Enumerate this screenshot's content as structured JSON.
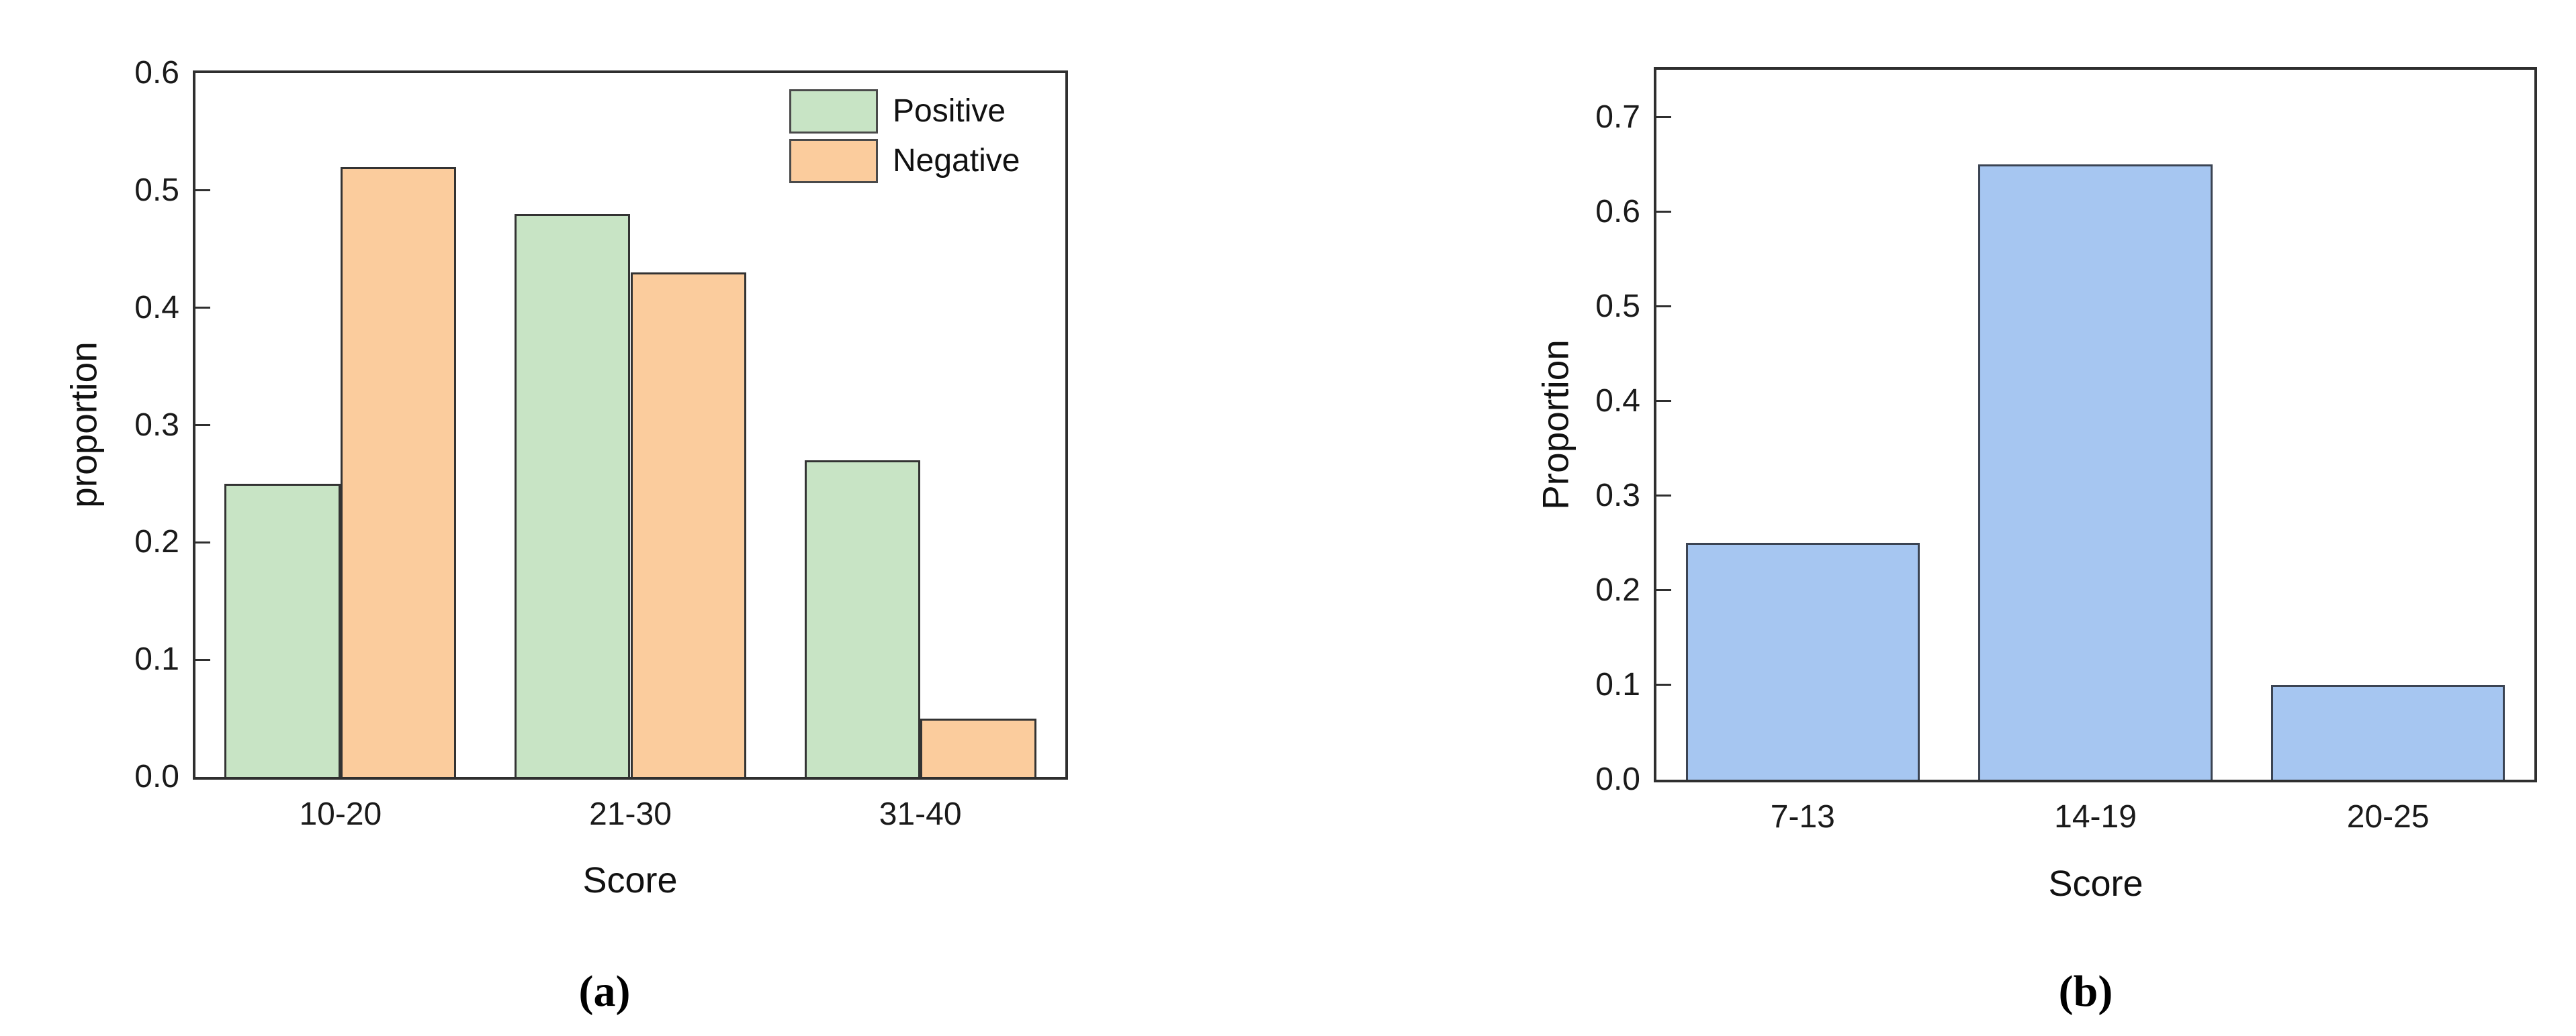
{
  "figure": {
    "background": "#ffffff",
    "spine_color": "#2f2f2f"
  },
  "chart_data": [
    {
      "id": "a",
      "type": "bar",
      "title": "",
      "xlabel": "Score",
      "ylabel": "proportion",
      "caption": "(a)",
      "categories": [
        "10-20",
        "21-30",
        "31-40"
      ],
      "series": [
        {
          "name": "Positive",
          "values": [
            0.25,
            0.48,
            0.27
          ],
          "fill": "#c8e4c5",
          "edge": "#333333"
        },
        {
          "name": "Negative",
          "values": [
            0.52,
            0.43,
            0.05
          ],
          "fill": "#fbcc9d",
          "edge": "#333333"
        }
      ],
      "ylim": [
        0,
        0.6
      ],
      "yticks": [
        "0.0",
        "0.1",
        "0.2",
        "0.3",
        "0.4",
        "0.5",
        "0.6"
      ],
      "grid": false,
      "tick_direction": "in",
      "spines": "box",
      "legend_position": "upper-right-inside"
    },
    {
      "id": "b",
      "type": "bar",
      "title": "",
      "xlabel": "Score",
      "ylabel": "Proportion",
      "caption": "(b)",
      "categories": [
        "7-13",
        "14-19",
        "20-25"
      ],
      "series": [
        {
          "name": "",
          "values": [
            0.25,
            0.65,
            0.1
          ],
          "fill": "#a6c6f1",
          "edge": "#3b4453"
        }
      ],
      "ylim": [
        0,
        0.75
      ],
      "yticks": [
        "0.0",
        "0.1",
        "0.2",
        "0.3",
        "0.4",
        "0.5",
        "0.6",
        "0.7"
      ],
      "grid": false,
      "tick_direction": "in",
      "spines": "box",
      "legend_position": "none"
    }
  ]
}
